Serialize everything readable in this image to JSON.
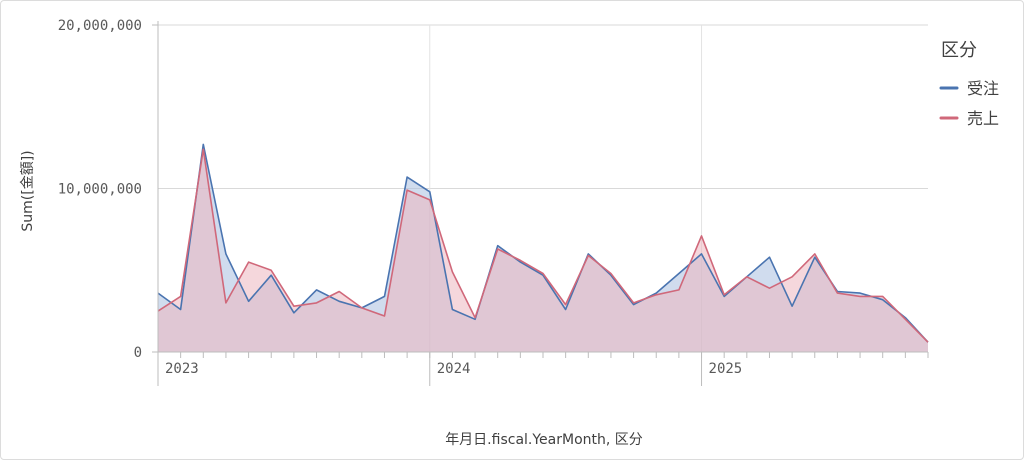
{
  "chart_data": {
    "type": "area",
    "xlabel": "年月日.fiscal.YearMonth, 区分",
    "ylabel": "Sum([金額])",
    "ylim": [
      0,
      20000000
    ],
    "y_ticks": [
      "0",
      "10,000,000",
      "20,000,000"
    ],
    "x_year_labels": [
      {
        "label": "2023",
        "start_index": 0
      },
      {
        "label": "2024",
        "start_index": 12
      },
      {
        "label": "2025",
        "start_index": 24
      }
    ],
    "x_unit": "month",
    "grid": true,
    "legend": {
      "title": "区分",
      "position": "right"
    },
    "series": [
      {
        "name": "受注",
        "color": "#4a74b0",
        "fill": "#a9bfe0",
        "values": [
          3600000,
          2600000,
          12700000,
          6000000,
          3100000,
          4700000,
          2400000,
          3800000,
          3100000,
          2700000,
          3400000,
          10700000,
          9800000,
          2600000,
          2000000,
          6500000,
          5500000,
          4700000,
          2600000,
          6000000,
          4700000,
          2900000,
          3600000,
          4800000,
          6000000,
          3400000,
          4600000,
          5800000,
          2800000,
          5800000,
          3700000,
          3600000,
          3200000,
          2100000,
          600000
        ]
      },
      {
        "name": "売上",
        "color": "#d0687a",
        "fill": "#ecb6c0",
        "values": [
          2500000,
          3400000,
          12400000,
          3000000,
          5500000,
          5000000,
          2800000,
          3000000,
          3700000,
          2700000,
          2200000,
          9900000,
          9300000,
          4900000,
          2100000,
          6300000,
          5600000,
          4800000,
          2900000,
          5900000,
          4800000,
          3000000,
          3500000,
          3800000,
          7100000,
          3500000,
          4600000,
          3900000,
          4600000,
          6000000,
          3600000,
          3400000,
          3400000,
          2000000,
          600000
        ]
      }
    ]
  }
}
